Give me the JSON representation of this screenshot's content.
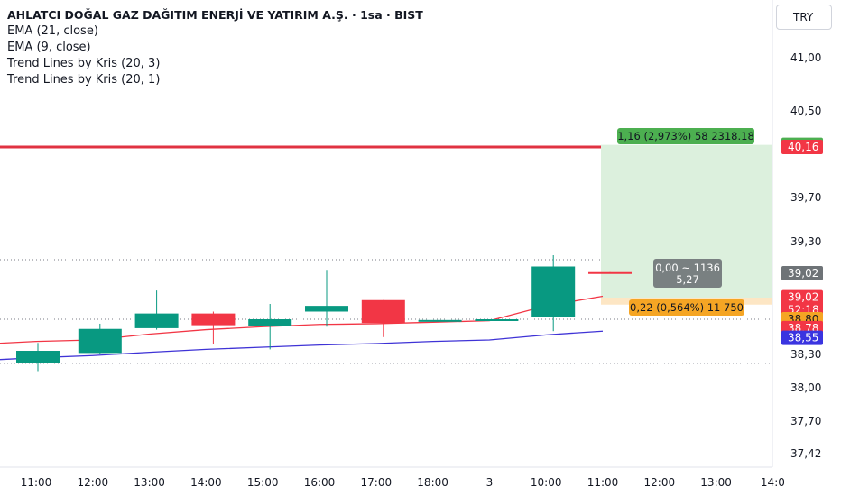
{
  "legend": {
    "title": "AHLATCI DOĞAL GAZ DAĞITIM ENERJİ VE YATIRIM A.Ş. · 1sa · BIST",
    "ema21": "EMA (21, close)",
    "ema9": "EMA (9, close)",
    "trend_20_3": "Trend Lines by Kris (20, 3)",
    "trend_20_1": "Trend Lines by Kris (20, 1)"
  },
  "currency": "TRY",
  "colors": {
    "up": "#089981",
    "down": "#f23645",
    "ema9": "#f23645",
    "ema21": "#3f33d6",
    "resistance": "#e03241",
    "profit_zone": "#dcf0dd",
    "stop_zone": "#fde6c4",
    "badge_green": "#4caf50",
    "badge_orange": "#f5a524",
    "badge_gray": "#6e7377",
    "badge_blue": "#3a34e0"
  },
  "chart_data": {
    "type": "candlestick",
    "x_labels": [
      "11:00",
      "12:00",
      "13:00",
      "14:00",
      "15:00",
      "16:00",
      "17:00",
      "18:00",
      "3",
      "10:00",
      "11:00",
      "12:00",
      "13:00",
      "14:0"
    ],
    "y_ticks": [
      "41,00",
      "40,50",
      "39,70",
      "39,30",
      "38,30",
      "38,00",
      "37,70",
      "37,42"
    ],
    "y_tick_values": [
      41.0,
      40.5,
      39.7,
      39.3,
      38.3,
      38.0,
      37.7,
      37.42
    ],
    "candles": [
      {
        "x": "11:00",
        "o": 38.22,
        "h": 38.46,
        "l": 38.15,
        "c": 38.35
      },
      {
        "x": "12:00",
        "o": 38.32,
        "h": 38.72,
        "l": 38.31,
        "c": 38.65
      },
      {
        "x": "13:00",
        "o": 38.66,
        "h": 38.93,
        "l": 38.64,
        "c": 38.81
      },
      {
        "x": "14:00",
        "o": 38.81,
        "h": 38.82,
        "l": 38.45,
        "c": 38.7
      },
      {
        "x": "15:00",
        "o": 38.69,
        "h": 38.86,
        "l": 38.37,
        "c": 38.78
      },
      {
        "x": "16:00",
        "o": 38.82,
        "h": 39.05,
        "l": 38.68,
        "c": 38.85
      },
      {
        "x": "17:00",
        "o": 38.88,
        "h": 38.88,
        "l": 38.54,
        "c": 38.73
      },
      {
        "x": "18:00",
        "o": 38.77,
        "h": 38.77,
        "l": 38.77,
        "c": 38.77
      },
      {
        "x": "3",
        "o": 38.78,
        "h": 38.78,
        "l": 38.78,
        "c": 38.78
      },
      {
        "x": "10:00",
        "o": 38.79,
        "h": 39.18,
        "l": 38.62,
        "c": 39.08
      },
      {
        "x": "11:00",
        "o": 39.03,
        "h": 39.03,
        "l": 39.02,
        "c": 39.02
      }
    ],
    "ema9": [
      38.48,
      38.5,
      38.58,
      38.64,
      38.68,
      38.71,
      38.72,
      38.74,
      38.76,
      38.85,
      38.9
    ],
    "ema21": [
      38.27,
      38.29,
      38.33,
      38.37,
      38.4,
      38.43,
      38.45,
      38.48,
      38.5,
      38.57,
      38.62
    ],
    "horizontal_lines": [
      {
        "price": 40.16,
        "style": "solid"
      },
      {
        "price": 39.14,
        "style": "dotted"
      },
      {
        "price": 38.78,
        "style": "dotted"
      },
      {
        "price": 38.22,
        "style": "dotted"
      }
    ],
    "ylim": [
      37.42,
      41.3
    ]
  },
  "position": {
    "entry": 39.02,
    "target": 40.18,
    "stop": 38.8,
    "target_label": "1,16 (2,973%) 58 2318.18",
    "stop_label": "0,22 (0,564%) 11 750",
    "info_line1": "0,00 ~ 1136",
    "info_line2": "5,27"
  },
  "price_badges": [
    {
      "label": "40,18",
      "price": 40.18,
      "color": "#4caf50",
      "text_color": "#ffffff"
    },
    {
      "label": "40,16",
      "price": 40.16,
      "color": "#f23645",
      "text_color": "#ffffff"
    },
    {
      "label": "39,02",
      "price": 39.02,
      "color": "#6e7377",
      "text_color": "#ffffff"
    },
    {
      "label": "39,02",
      "price": 38.89,
      "color": "#f23645",
      "text_color": "#ffffff",
      "sub": "52:18"
    },
    {
      "label": "38,80",
      "price": 38.78,
      "color": "#f5a524",
      "text_color": "#131722"
    },
    {
      "label": "38,78",
      "price": 38.66,
      "color": "#f23645",
      "text_color": "#ffffff"
    },
    {
      "label": "38,55",
      "price": 38.53,
      "color": "#3a34e0",
      "text_color": "#ffffff"
    }
  ]
}
